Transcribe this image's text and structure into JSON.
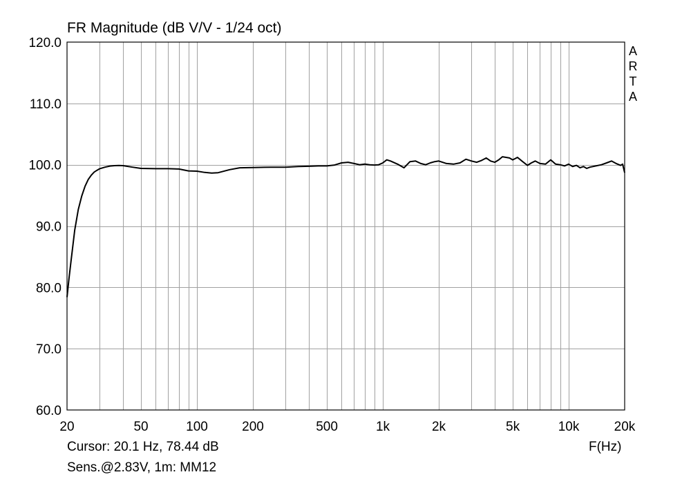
{
  "chart_data": {
    "type": "line",
    "title": "FR Magnitude (dB V/V - 1/24 oct)",
    "xlabel": "F(Hz)",
    "ylabel": "",
    "x_scale": "log",
    "xlim": [
      20,
      20000
    ],
    "ylim": [
      60,
      120
    ],
    "grid": true,
    "x_ticks": [
      20,
      50,
      100,
      200,
      500,
      1000,
      2000,
      5000,
      10000,
      20000
    ],
    "x_tick_labels": [
      "20",
      "50",
      "100",
      "200",
      "500",
      "1k",
      "2k",
      "5k",
      "10k",
      "20k"
    ],
    "y_ticks": [
      60,
      70,
      80,
      90,
      100,
      110,
      120
    ],
    "y_tick_labels": [
      "60.0",
      "70.0",
      "80.0",
      "90.0",
      "100.0",
      "110.0",
      "120.0"
    ],
    "series": [
      {
        "x": [
          20,
          20.5,
          21,
          22,
          23,
          24,
          25,
          26,
          27,
          28,
          29,
          30,
          32,
          34,
          36,
          38,
          40,
          45,
          50,
          60,
          70,
          80,
          90,
          100,
          110,
          120,
          130,
          150,
          170,
          200,
          250,
          300,
          350,
          400,
          450,
          500,
          550,
          600,
          650,
          700,
          750,
          800,
          850,
          900,
          950,
          1000,
          1050,
          1100,
          1200,
          1300,
          1400,
          1500,
          1600,
          1700,
          1800,
          1900,
          2000,
          2200,
          2400,
          2600,
          2800,
          3000,
          3200,
          3400,
          3600,
          3800,
          4000,
          4200,
          4400,
          4600,
          4800,
          5000,
          5300,
          5600,
          6000,
          6300,
          6600,
          7000,
          7500,
          8000,
          8500,
          9000,
          9500,
          10000,
          10500,
          11000,
          11500,
          12000,
          12500,
          13000,
          14000,
          15000,
          16000,
          17000,
          18000,
          19000,
          19500,
          20000
        ],
        "y": [
          78.4,
          81.5,
          84.2,
          89.3,
          92.7,
          94.9,
          96.5,
          97.6,
          98.3,
          98.8,
          99.1,
          99.35,
          99.6,
          99.78,
          99.85,
          99.87,
          99.85,
          99.6,
          99.4,
          99.35,
          99.35,
          99.3,
          99.0,
          98.95,
          98.75,
          98.65,
          98.7,
          99.2,
          99.5,
          99.55,
          99.6,
          99.6,
          99.7,
          99.75,
          99.8,
          99.8,
          99.95,
          100.3,
          100.4,
          100.2,
          100.0,
          100.1,
          100.0,
          99.95,
          100.0,
          100.3,
          100.8,
          100.6,
          100.1,
          99.5,
          100.5,
          100.6,
          100.2,
          100.0,
          100.3,
          100.5,
          100.6,
          100.2,
          100.1,
          100.3,
          100.9,
          100.6,
          100.4,
          100.7,
          101.1,
          100.6,
          100.4,
          100.8,
          101.3,
          101.2,
          101.1,
          100.8,
          101.2,
          100.6,
          99.9,
          100.3,
          100.6,
          100.2,
          100.1,
          100.8,
          100.1,
          100.0,
          99.8,
          100.1,
          99.7,
          99.9,
          99.5,
          99.7,
          99.4,
          99.6,
          99.8,
          100.0,
          100.3,
          100.6,
          100.2,
          99.9,
          100.1,
          98.7
        ]
      }
    ]
  },
  "labels": {
    "title": "FR Magnitude (dB V/V - 1/24 oct)",
    "x_axis_label": "F(Hz)",
    "cursor_readout": "Cursor: 20.1 Hz, 78.44 dB",
    "sens_readout": "Sens.@2.83V, 1m: MM12",
    "brand_letters": [
      "A",
      "R",
      "T",
      "A"
    ]
  },
  "colors": {
    "background": "#ffffff",
    "grid": "#a0a0a0",
    "frame": "#000000",
    "trace": "#000000"
  }
}
